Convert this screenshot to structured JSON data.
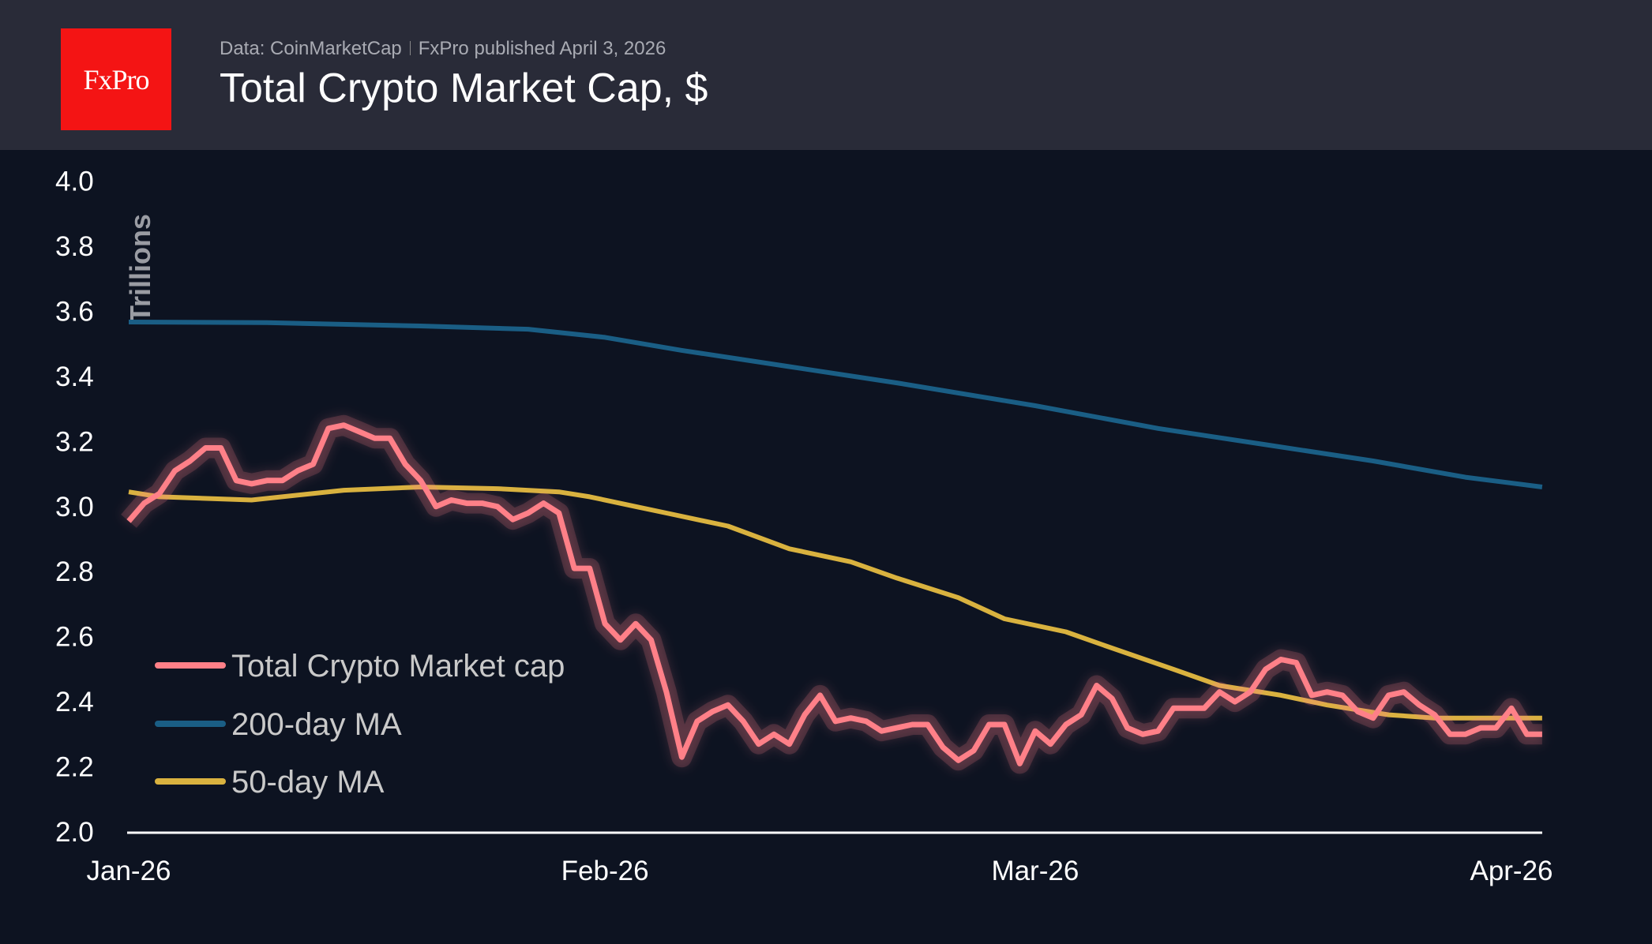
{
  "header": {
    "logo_text": "FxPro",
    "source": "Data: CoinMarketCap",
    "published": "FxPro published April 3, 2026",
    "title": "Total Crypto Market Cap, $"
  },
  "chart_data": {
    "type": "line",
    "title": "Total Crypto Market Cap, $",
    "ylabel": "Trillions",
    "xlabel": "",
    "ylim": [
      2.0,
      4.0
    ],
    "yticks": [
      "2.0",
      "2.2",
      "2.4",
      "2.6",
      "2.8",
      "3.0",
      "3.2",
      "3.4",
      "3.6",
      "3.8",
      "4.0"
    ],
    "xlim": [
      "2026-01-01",
      "2026-04-03"
    ],
    "xticks": [
      {
        "date": "2026-01-01",
        "label": "Jan-26"
      },
      {
        "date": "2026-02-01",
        "label": "Feb-26"
      },
      {
        "date": "2026-03-01",
        "label": "Mar-26"
      },
      {
        "date": "2026-04-01",
        "label": "Apr-26"
      }
    ],
    "grid": false,
    "legend_placement": "bottom-left",
    "series": [
      {
        "name": "Total Crypto Market cap",
        "color": "#ff8088",
        "x": [
          "2026-01-01",
          "2026-01-02",
          "2026-01-03",
          "2026-01-04",
          "2026-01-05",
          "2026-01-06",
          "2026-01-07",
          "2026-01-08",
          "2026-01-09",
          "2026-01-10",
          "2026-01-11",
          "2026-01-12",
          "2026-01-13",
          "2026-01-14",
          "2026-01-15",
          "2026-01-16",
          "2026-01-17",
          "2026-01-18",
          "2026-01-19",
          "2026-01-20",
          "2026-01-21",
          "2026-01-22",
          "2026-01-23",
          "2026-01-24",
          "2026-01-25",
          "2026-01-26",
          "2026-01-27",
          "2026-01-28",
          "2026-01-29",
          "2026-01-30",
          "2026-01-31",
          "2026-02-01",
          "2026-02-02",
          "2026-02-03",
          "2026-02-04",
          "2026-02-05",
          "2026-02-06",
          "2026-02-07",
          "2026-02-08",
          "2026-02-09",
          "2026-02-10",
          "2026-02-11",
          "2026-02-12",
          "2026-02-13",
          "2026-02-14",
          "2026-02-15",
          "2026-02-16",
          "2026-02-17",
          "2026-02-18",
          "2026-02-19",
          "2026-02-20",
          "2026-02-21",
          "2026-02-22",
          "2026-02-23",
          "2026-02-24",
          "2026-02-25",
          "2026-02-26",
          "2026-02-27",
          "2026-02-28",
          "2026-03-01",
          "2026-03-02",
          "2026-03-03",
          "2026-03-04",
          "2026-03-05",
          "2026-03-06",
          "2026-03-07",
          "2026-03-08",
          "2026-03-09",
          "2026-03-10",
          "2026-03-11",
          "2026-03-12",
          "2026-03-13",
          "2026-03-14",
          "2026-03-15",
          "2026-03-16",
          "2026-03-17",
          "2026-03-18",
          "2026-03-19",
          "2026-03-20",
          "2026-03-21",
          "2026-03-22",
          "2026-03-23",
          "2026-03-24",
          "2026-03-25",
          "2026-03-26",
          "2026-03-27",
          "2026-03-28",
          "2026-03-29",
          "2026-03-30",
          "2026-03-31",
          "2026-04-01",
          "2026-04-02",
          "2026-04-03"
        ],
        "y": [
          2.955,
          3.01,
          3.04,
          3.11,
          3.14,
          3.18,
          3.18,
          3.08,
          3.07,
          3.08,
          3.08,
          3.11,
          3.13,
          3.24,
          3.25,
          3.23,
          3.21,
          3.21,
          3.13,
          3.08,
          3.0,
          3.02,
          3.01,
          3.01,
          3.0,
          2.96,
          2.98,
          3.01,
          2.98,
          2.81,
          2.81,
          2.64,
          2.59,
          2.64,
          2.59,
          2.43,
          2.23,
          2.34,
          2.37,
          2.39,
          2.34,
          2.27,
          2.3,
          2.27,
          2.36,
          2.42,
          2.34,
          2.35,
          2.34,
          2.31,
          2.32,
          2.33,
          2.33,
          2.26,
          2.22,
          2.25,
          2.33,
          2.33,
          2.21,
          2.31,
          2.27,
          2.33,
          2.36,
          2.45,
          2.41,
          2.32,
          2.3,
          2.31,
          2.38,
          2.38,
          2.38,
          2.43,
          2.4,
          2.43,
          2.5,
          2.53,
          2.52,
          2.42,
          2.43,
          2.42,
          2.37,
          2.35,
          2.42,
          2.43,
          2.39,
          2.36,
          2.3,
          2.3,
          2.32,
          2.32,
          2.38,
          2.3,
          2.3
        ]
      },
      {
        "name": "200-day MA",
        "color": "#1a5e85",
        "x": [
          "2026-01-01",
          "2026-01-10",
          "2026-01-20",
          "2026-01-27",
          "2026-02-01",
          "2026-02-06",
          "2026-02-13",
          "2026-02-20",
          "2026-03-01",
          "2026-03-09",
          "2026-03-16",
          "2026-03-23",
          "2026-03-29",
          "2026-04-03"
        ],
        "y": [
          3.567,
          3.565,
          3.555,
          3.545,
          3.52,
          3.48,
          3.43,
          3.38,
          3.31,
          3.24,
          3.19,
          3.14,
          3.09,
          3.06
        ]
      },
      {
        "name": "50-day MA",
        "color": "#d9b23f",
        "x": [
          "2026-01-01",
          "2026-01-03",
          "2026-01-09",
          "2026-01-15",
          "2026-01-20",
          "2026-01-25",
          "2026-01-29",
          "2026-01-31",
          "2026-02-03",
          "2026-02-05",
          "2026-02-09",
          "2026-02-13",
          "2026-02-17",
          "2026-02-20",
          "2026-02-24",
          "2026-02-27",
          "2026-03-03",
          "2026-03-06",
          "2026-03-10",
          "2026-03-13",
          "2026-03-17",
          "2026-03-20",
          "2026-03-24",
          "2026-03-27",
          "2026-03-31",
          "2026-04-03"
        ],
        "y": [
          3.045,
          3.03,
          3.02,
          3.05,
          3.06,
          3.055,
          3.045,
          3.03,
          3.0,
          2.98,
          2.94,
          2.87,
          2.83,
          2.78,
          2.72,
          2.655,
          2.615,
          2.565,
          2.5,
          2.45,
          2.42,
          2.39,
          2.36,
          2.35,
          2.35,
          2.35
        ]
      }
    ]
  }
}
